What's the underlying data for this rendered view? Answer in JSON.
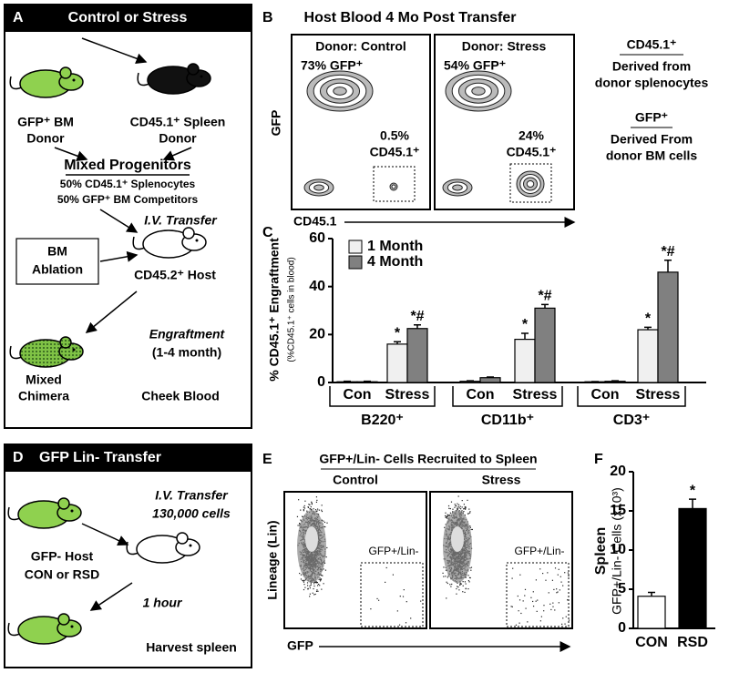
{
  "panel_a": {
    "letter": "A",
    "title": "Control or Stress",
    "donor_bm": [
      "GFP⁺ BM",
      "Donor"
    ],
    "donor_spleen": [
      "CD45.1⁺ Spleen",
      "Donor"
    ],
    "mix_title": "Mixed Progenitors",
    "mix_lines": [
      "50% CD45.1⁺ Splenocytes",
      "50% GFP⁺ BM Competitors"
    ],
    "transfer": "I.V. Transfer",
    "ablation": [
      "BM",
      "Ablation"
    ],
    "host": "CD45.2⁺ Host",
    "engraftment": [
      "Engraftment",
      "(1-4 month)"
    ],
    "chimera": [
      "Mixed",
      "Chimera"
    ],
    "sample": "Cheek Blood"
  },
  "panel_b": {
    "letter": "B",
    "title": "Host Blood 4 Mo Post Transfer",
    "y_label": "GFP",
    "x_label": "CD45.1",
    "plots": [
      {
        "title": "Donor: Control",
        "gfp": "73% GFP⁺",
        "cd45": [
          "0.5%",
          "CD45.1⁺"
        ]
      },
      {
        "title": "Donor: Stress",
        "gfp": "54% GFP⁺",
        "cd45": [
          "24%",
          "CD45.1⁺"
        ]
      }
    ],
    "legend": [
      {
        "head": "CD45.1⁺",
        "lines": [
          "Derived from",
          "donor splenocytes"
        ]
      },
      {
        "head": "GFP⁺",
        "lines": [
          "Derived From",
          "donor BM cells"
        ]
      }
    ]
  },
  "panel_d": {
    "letter": "D",
    "title": "GFP Lin- Transfer",
    "transfer": [
      "I.V. Transfer",
      "130,000 cells"
    ],
    "host": [
      "GFP- Host",
      "CON or RSD"
    ],
    "time": "1 hour",
    "harvest": "Harvest spleen"
  },
  "panel_e": {
    "letter": "E",
    "title": "GFP+/Lin- Cells Recruited to Spleen",
    "y_label": "Lineage (Lin)",
    "x_label": "GFP",
    "plots": [
      {
        "title": "Control",
        "gate": "GFP+/Lin-"
      },
      {
        "title": "Stress",
        "gate": "GFP+/Lin-"
      }
    ]
  },
  "chart_data": [
    {
      "type": "bar",
      "panel": "C",
      "y_label": "% CD45.1⁺ Engraftment",
      "y_sublabel": "(%CD45.1⁺ cells in blood)",
      "categories": [
        "Con",
        "Stress",
        "Con",
        "Stress",
        "Con",
        "Stress"
      ],
      "groups": [
        "B220⁺",
        "CD11b⁺",
        "CD3⁺"
      ],
      "series": [
        {
          "name": "1 Month",
          "color": "#f0f0f0",
          "values": [
            0.3,
            16,
            0.5,
            18,
            0.3,
            22
          ],
          "errors": [
            0.2,
            1,
            0.2,
            2.5,
            0.1,
            1
          ],
          "annotations": [
            null,
            "*",
            null,
            "*",
            null,
            "*"
          ]
        },
        {
          "name": "4 Month",
          "color": "#808080",
          "values": [
            0.3,
            22.5,
            2,
            31,
            0.5,
            46
          ],
          "errors": [
            0.2,
            1.5,
            0.3,
            1.5,
            0.2,
            5
          ],
          "annotations": [
            null,
            "*#",
            null,
            "*#",
            null,
            "*#"
          ]
        }
      ],
      "ylim": [
        0,
        60
      ],
      "yticks": [
        0,
        20,
        40,
        60
      ],
      "legend": "top-left"
    },
    {
      "type": "bar",
      "panel": "F",
      "y_label": "Spleen",
      "y_sublabel": "GFP+/Lin- Cells (x10³)",
      "categories": [
        "CON",
        "RSD"
      ],
      "values": [
        4.1,
        15.3
      ],
      "errors": [
        0.5,
        1.2
      ],
      "colors": [
        "#ffffff",
        "#000000"
      ],
      "annotations": [
        null,
        "*"
      ],
      "ylim": [
        0,
        20
      ],
      "yticks": [
        0,
        5,
        10,
        15,
        20
      ]
    }
  ]
}
